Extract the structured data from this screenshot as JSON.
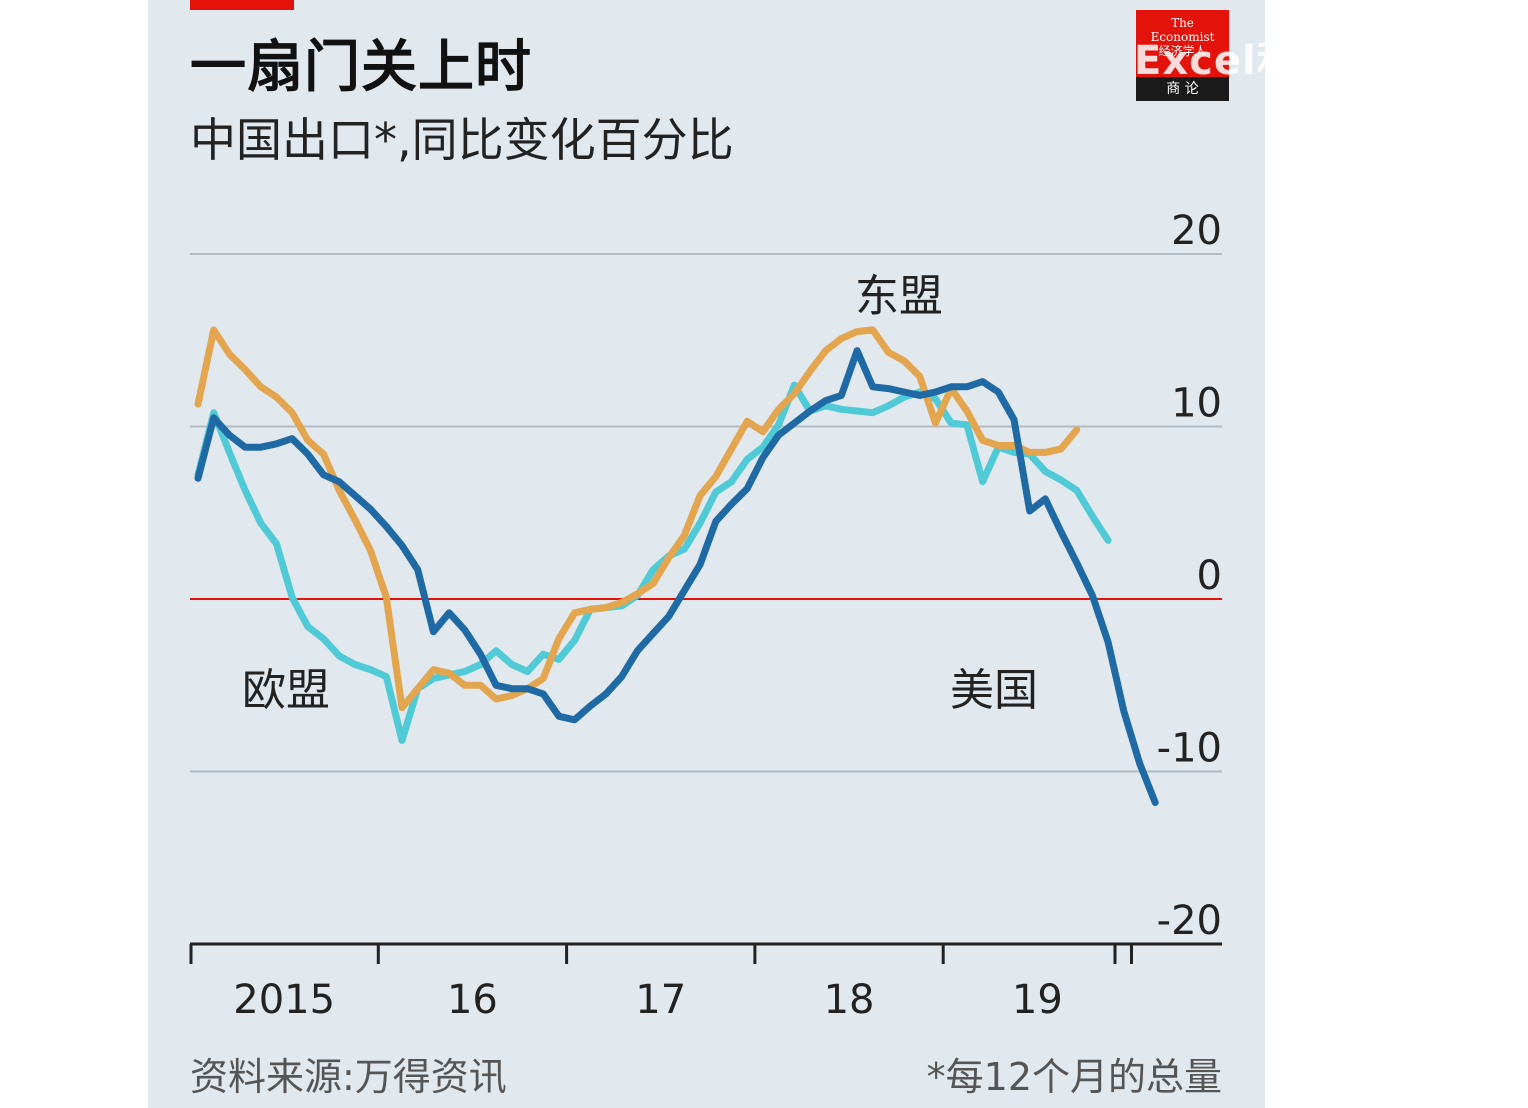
{
  "header": {
    "title": "一扇门关上时",
    "subtitle": "中国出口*,同比变化百分比"
  },
  "logo": {
    "text": "The\nEconomist\n经济学人",
    "band": "商 论"
  },
  "watermark": "Excel和PowerBI聚焦",
  "footer": {
    "source": "资料来源:万得资讯",
    "footnote": "*每12个月的总量"
  },
  "colors": {
    "background": "#e1e9ef",
    "gridline": "#b4bcc3",
    "zero_line": "#e3120b",
    "us": "#1f6aa5",
    "eu": "#4fcad6",
    "asean": "#e3a54d"
  },
  "chart_data": {
    "type": "line",
    "title": "一扇门关上时",
    "subtitle": "中国出口*,同比变化百分比",
    "ylim": [
      -20,
      20
    ],
    "yticks": [
      20,
      10,
      0,
      -10,
      -20
    ],
    "grid": true,
    "x_start": 2015,
    "x_step_months": 1,
    "x_ticks": [
      {
        "label": "2015",
        "value": 2015.5
      },
      {
        "label": "16",
        "value": 2016.5
      },
      {
        "label": "17",
        "value": 2017.5
      },
      {
        "label": "18",
        "value": 2018.5
      },
      {
        "label": "19",
        "value": 2019.5
      }
    ],
    "series": [
      {
        "name": "美国",
        "color": "#1f6aa5",
        "label_position": "right",
        "values": [
          7,
          10.5,
          9.5,
          8.8,
          8.8,
          9,
          9.3,
          8.4,
          7.2,
          6.8,
          6,
          5.2,
          4.2,
          3.1,
          1.7,
          -1.9,
          -0.8,
          -1.8,
          -3.2,
          -5,
          -5.2,
          -5.2,
          -5.5,
          -6.8,
          -7,
          -6.2,
          -5.5,
          -4.5,
          -3,
          -2,
          -1,
          0.5,
          2,
          4.5,
          5.5,
          6.4,
          8.2,
          9.5,
          10.2,
          10.9,
          11.5,
          11.8,
          14.4,
          12.3,
          12.2,
          12,
          11.8,
          12,
          12.3,
          12.3,
          12.6,
          12,
          10.4,
          5.1,
          5.8,
          3.9,
          2.1,
          0.2,
          -2.5,
          -6.5,
          -9.5,
          -11.8
        ]
      },
      {
        "name": "欧盟",
        "color": "#4fcad6",
        "label_position": "left",
        "values": [
          7.2,
          10.8,
          8.5,
          6.3,
          4.4,
          3.2,
          0.1,
          -1.6,
          -2.3,
          -3.3,
          -3.8,
          -4.1,
          -4.5,
          -8.2,
          -5.2,
          -4.6,
          -4.4,
          -4.2,
          -3.8,
          -3,
          -3.8,
          -4.2,
          -3.2,
          -3.5,
          -2.4,
          -0.6,
          -0.5,
          -0.4,
          0.2,
          1.7,
          2.5,
          2.9,
          4.4,
          6.2,
          6.8,
          8.1,
          8.8,
          10.1,
          12.4,
          10.9,
          11.2,
          11,
          10.9,
          10.8,
          11.2,
          11.7,
          12,
          11.6,
          10.2,
          10.1,
          6.8,
          8.8,
          8.5,
          8.4,
          7.4,
          6.9,
          6.3,
          4.8,
          3.4
        ]
      },
      {
        "name": "东盟",
        "color": "#e3a54d",
        "label_position": "top",
        "values": [
          11.3,
          15.6,
          14.2,
          13.3,
          12.3,
          11.7,
          10.8,
          9.2,
          8.4,
          6.3,
          4.6,
          2.8,
          0.1,
          -6.3,
          -5.2,
          -4.1,
          -4.3,
          -5,
          -5,
          -5.8,
          -5.6,
          -5.2,
          -4.6,
          -2.3,
          -0.8,
          -0.6,
          -0.5,
          -0.2,
          0.3,
          0.9,
          2.4,
          3.7,
          6,
          7.1,
          8.7,
          10.3,
          9.7,
          11,
          11.9,
          13.2,
          14.4,
          15.1,
          15.5,
          15.6,
          14.3,
          13.8,
          12.9,
          10.2,
          12.2,
          10.9,
          9.2,
          8.9,
          8.9,
          8.5,
          8.5,
          8.7,
          9.8
        ]
      }
    ],
    "legend": "inline labels on chart"
  }
}
